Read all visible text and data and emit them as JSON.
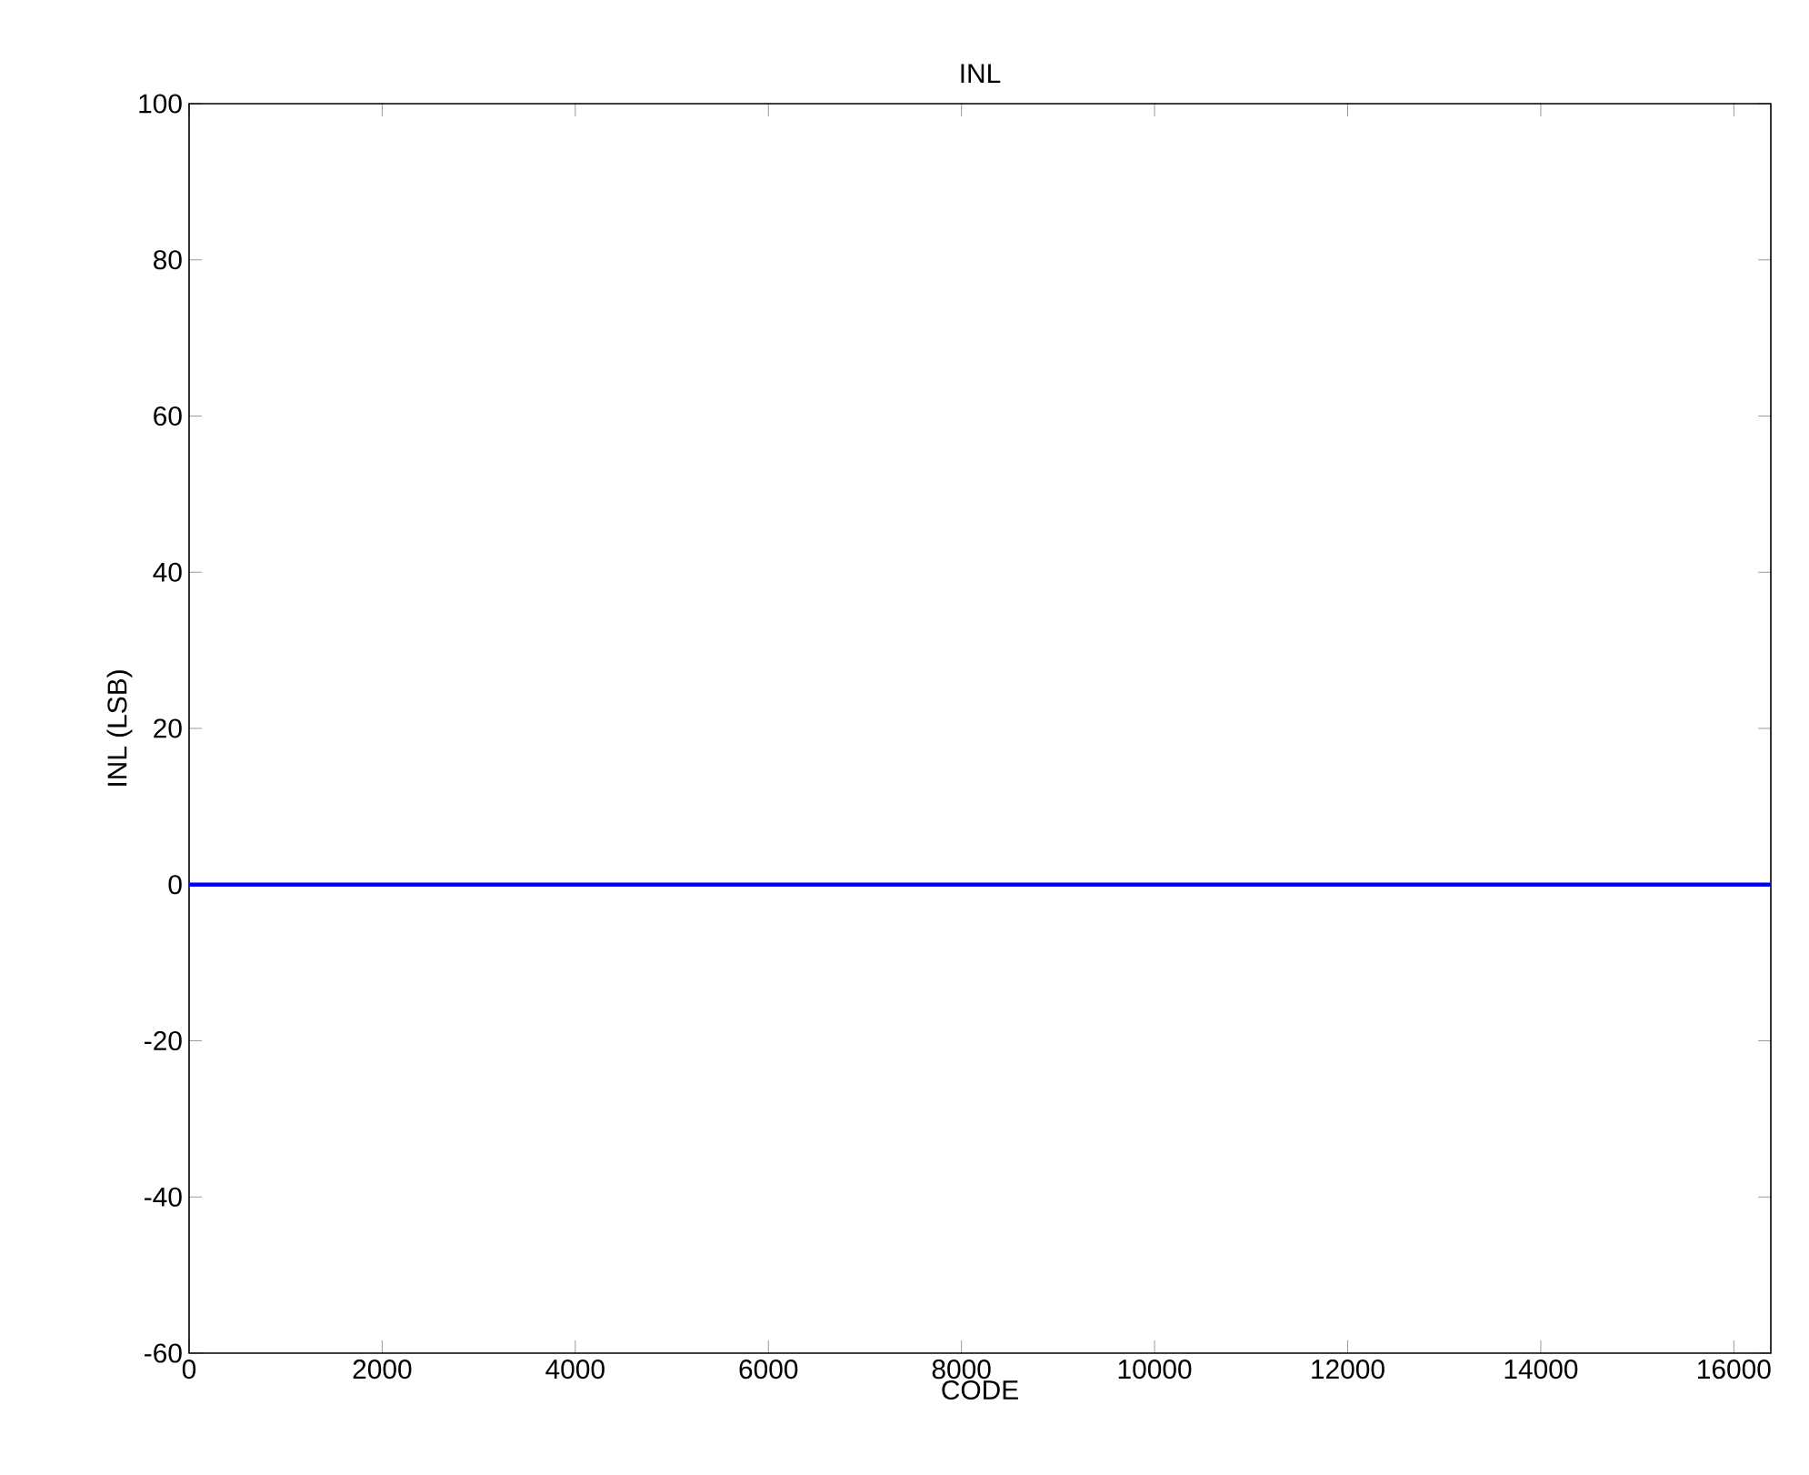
{
  "chart_data": {
    "type": "line",
    "title": "INL",
    "xlabel": "CODE",
    "ylabel": "INL (LSB)",
    "x": [
      0,
      16383
    ],
    "series": [
      {
        "color": "#0000ff",
        "values": [
          0,
          0
        ]
      }
    ],
    "xlim": [
      0,
      16383
    ],
    "ylim": [
      -60,
      100
    ],
    "xticks": [
      0,
      2000,
      4000,
      6000,
      8000,
      10000,
      12000,
      14000,
      16000
    ],
    "yticks": [
      -60,
      -40,
      -20,
      0,
      20,
      40,
      60,
      80,
      100
    ]
  }
}
